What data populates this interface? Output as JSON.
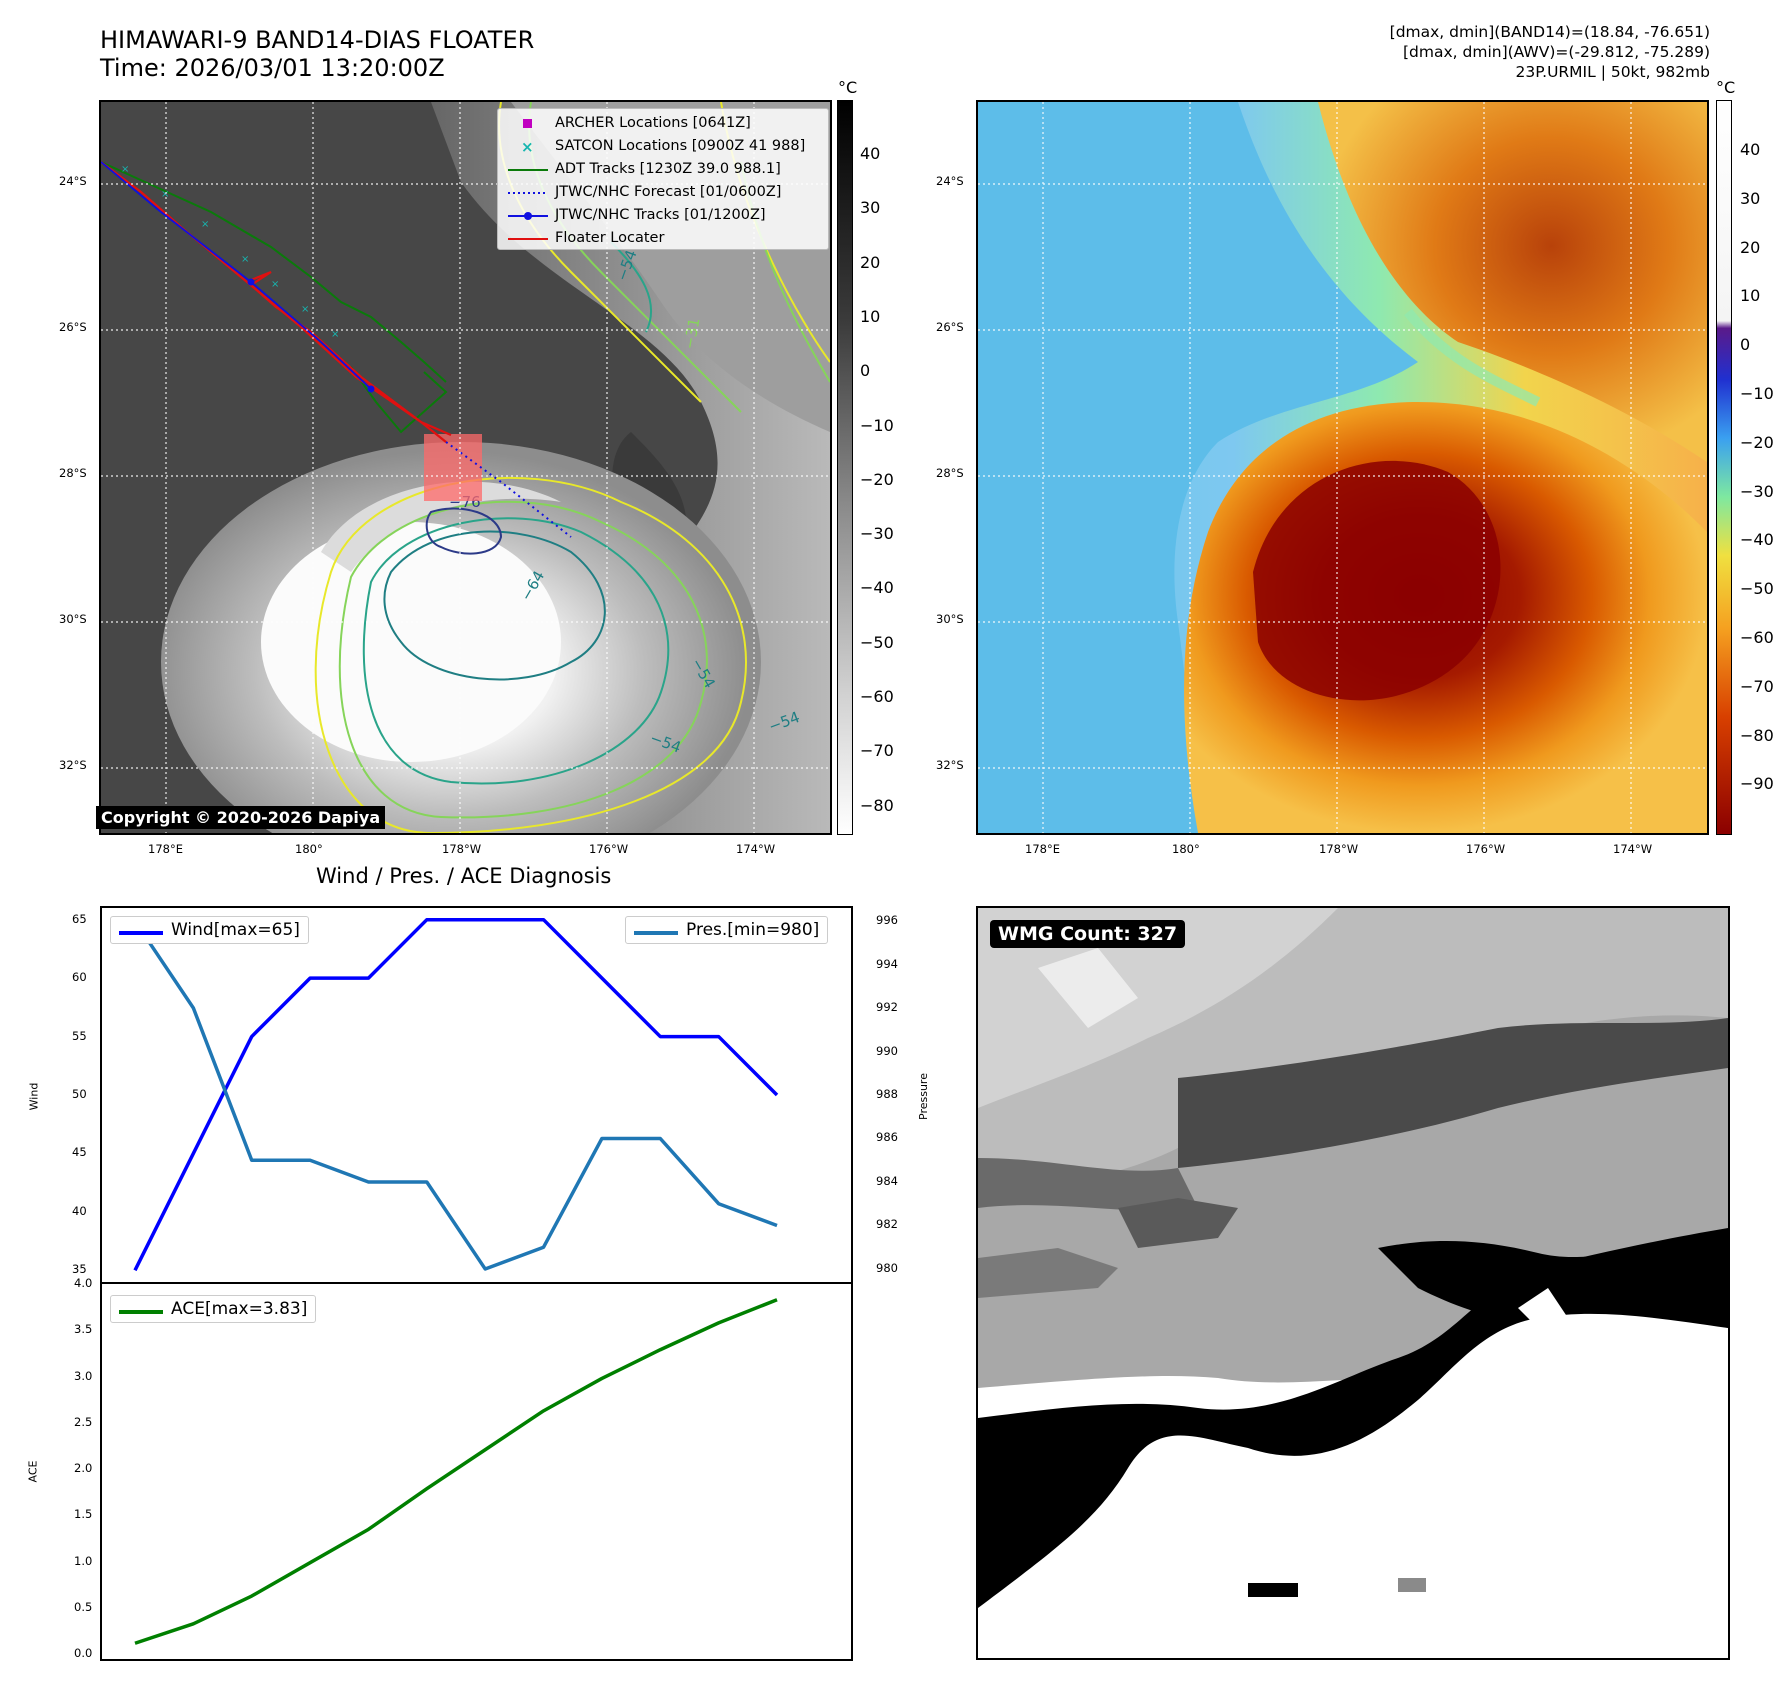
{
  "header": {
    "title_line1": "HIMAWARI-9 BAND14-DIAS FLOATER",
    "title_line2": "Time: 2026/03/01 13:20:00Z",
    "info_line1": "[dmax, dmin](BAND14)=(18.84, -76.651)",
    "info_line2": "[dmax, dmin](AWV)=(-29.812, -75.289)",
    "info_line3": "23P.URMIL | 50kt, 982mb"
  },
  "map_axes": {
    "lat_labels": [
      "24°S",
      "26°S",
      "28°S",
      "30°S",
      "32°S"
    ],
    "lon_labels": [
      "178°E",
      "180°",
      "178°W",
      "176°W",
      "174°W"
    ]
  },
  "ir_panel": {
    "copyright": "Copyright © 2020-2026 Dapiya",
    "colorbar_unit": "°C",
    "colorbar_ticks": [
      "40",
      "30",
      "20",
      "10",
      "0",
      "−10",
      "−20",
      "−30",
      "−40",
      "−50",
      "−60",
      "−70",
      "−80"
    ],
    "contour_labels": [
      "−54",
      "−31",
      "−76",
      "−64",
      "−54",
      "−54",
      "−54"
    ],
    "legend": [
      {
        "label": "ARCHER Locations [0641Z]",
        "color": "#c000c0",
        "marker": "square"
      },
      {
        "label": "SATCON Locations [0900Z 41 988]",
        "color": "#17b6b0",
        "marker": "x"
      },
      {
        "label": "ADT Tracks [1230Z 39.0 988.1]",
        "color": "#0a7a0a",
        "marker": "line"
      },
      {
        "label": "JTWC/NHC Forecast [01/0600Z]",
        "color": "#1010e0",
        "marker": "dotted"
      },
      {
        "label": "JTWC/NHC Tracks [01/1200Z]",
        "color": "#1010e0",
        "marker": "line-dot"
      },
      {
        "label": "Floater Locater",
        "color": "#e01010",
        "marker": "line"
      }
    ]
  },
  "awv_panel": {
    "colorbar_unit": "°C",
    "colorbar_ticks": [
      "40",
      "30",
      "20",
      "10",
      "0",
      "−10",
      "−20",
      "−30",
      "−40",
      "−50",
      "−60",
      "−70",
      "−80",
      "−90"
    ]
  },
  "diagnosis": {
    "title": "Wind / Pres. / ACE Diagnosis",
    "wind_legend": "Wind[max=65]",
    "pres_legend": "Pres.[min=980]",
    "ace_legend": "ACE[max=3.83]",
    "wind_axis_label": "Wind",
    "pres_axis_label": "Pressure",
    "ace_axis_label": "ACE"
  },
  "wmg_panel": {
    "label": "WMG Count: 327"
  },
  "chart_data": [
    {
      "type": "line",
      "title": "Wind / Pres. / ACE Diagnosis",
      "x": [
        0,
        1,
        2,
        3,
        4,
        5,
        6,
        7,
        8,
        9,
        10,
        11
      ],
      "series": [
        {
          "name": "Wind[max=65]",
          "axis": "left",
          "color": "#0000ff",
          "values": [
            35,
            45,
            55,
            60,
            60,
            65,
            65,
            65,
            60,
            55,
            55,
            50
          ]
        },
        {
          "name": "Pres.[min=980]",
          "axis": "right",
          "color": "#1f77b4",
          "values": [
            996,
            992,
            985,
            985,
            984,
            984,
            980,
            981,
            986,
            986,
            983,
            982
          ]
        }
      ],
      "ylabel": "Wind",
      "ylim": [
        34,
        66
      ],
      "yticks": [
        35,
        40,
        45,
        50,
        55,
        60,
        65
      ],
      "y2label": "Pressure",
      "y2lim": [
        979.4,
        996.6
      ],
      "y2ticks": [
        980,
        982,
        984,
        986,
        988,
        990,
        992,
        994,
        996
      ]
    },
    {
      "type": "line",
      "x": [
        0,
        1,
        2,
        3,
        4,
        5,
        6,
        7,
        8,
        9,
        10,
        11
      ],
      "series": [
        {
          "name": "ACE[max=3.83]",
          "color": "#008000",
          "values": [
            0.12,
            0.33,
            0.63,
            0.99,
            1.35,
            1.79,
            2.21,
            2.63,
            2.98,
            3.29,
            3.58,
            3.83
          ]
        }
      ],
      "ylabel": "ACE",
      "ylim": [
        -0.05,
        4.0
      ],
      "yticks": [
        "0.0",
        "0.5",
        "1.0",
        "1.5",
        "2.0",
        "2.5",
        "3.0",
        "3.5",
        "4.0"
      ]
    }
  ]
}
